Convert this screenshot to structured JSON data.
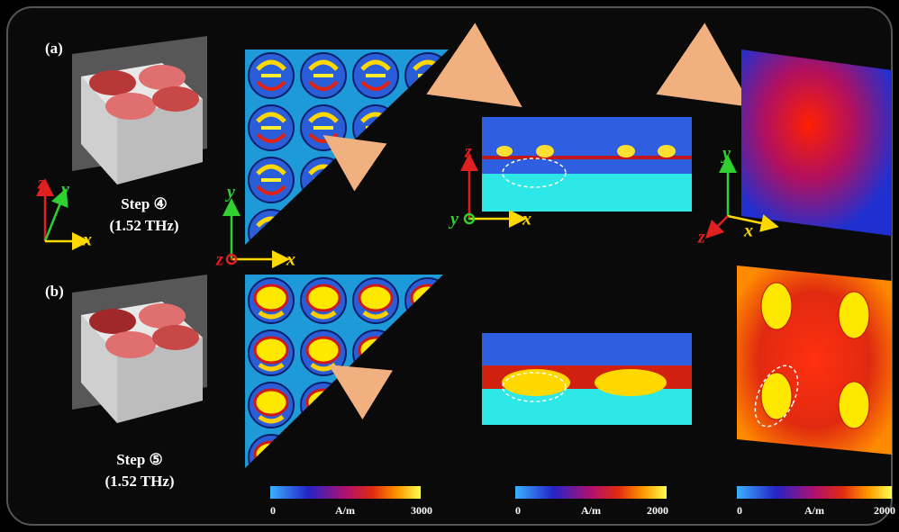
{
  "panels": [
    {
      "label": "(a)",
      "step": "Step ④",
      "frequency": "(1.52 THz)"
    },
    {
      "label": "(b)",
      "step": "Step ⑤",
      "frequency": "(1.52 THz)"
    }
  ],
  "axes": [
    {
      "x": "x",
      "y": "y",
      "z": "z"
    },
    {
      "x": "x",
      "y": "y",
      "z": "z"
    },
    {
      "x": "x",
      "y": "y",
      "z": "z"
    },
    {
      "x": "x",
      "y": "y",
      "z": "z"
    }
  ],
  "colorbars": [
    {
      "min": 0,
      "unit": "A/m",
      "max": 3000
    },
    {
      "min": 0,
      "unit": "A/m",
      "max": 2000
    },
    {
      "min": 0,
      "unit": "A/m",
      "max": 2000
    }
  ]
}
